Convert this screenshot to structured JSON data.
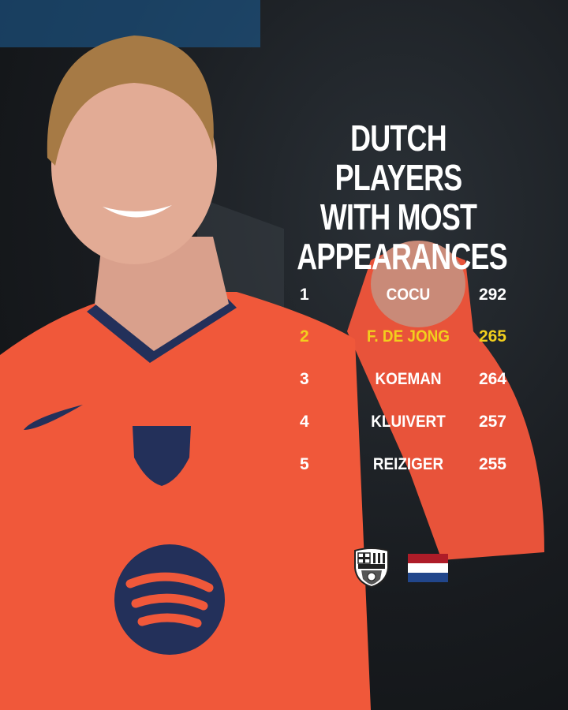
{
  "title": [
    "DUTCH PLAYERS",
    "WITH MOST",
    "APPEARANCES"
  ],
  "rankings": [
    {
      "rank": "1",
      "name": "COCU",
      "appearances": "292",
      "highlight": false
    },
    {
      "rank": "2",
      "name": "F. DE JONG",
      "appearances": "265",
      "highlight": true
    },
    {
      "rank": "3",
      "name": "KOEMAN",
      "appearances": "264",
      "highlight": false
    },
    {
      "rank": "4",
      "name": "KLUIVERT",
      "appearances": "257",
      "highlight": false
    },
    {
      "rank": "5",
      "name": "REIZIGER",
      "appearances": "255",
      "highlight": false
    }
  ],
  "logos": {
    "club_crest_text": "FCB",
    "flag": "netherlands-flag"
  },
  "colors": {
    "highlight": "#f2cf1d",
    "text": "#ffffff",
    "shirt": "#f0583a",
    "flag_red": "#ae1c28",
    "flag_white": "#ffffff",
    "flag_blue": "#21468b"
  }
}
